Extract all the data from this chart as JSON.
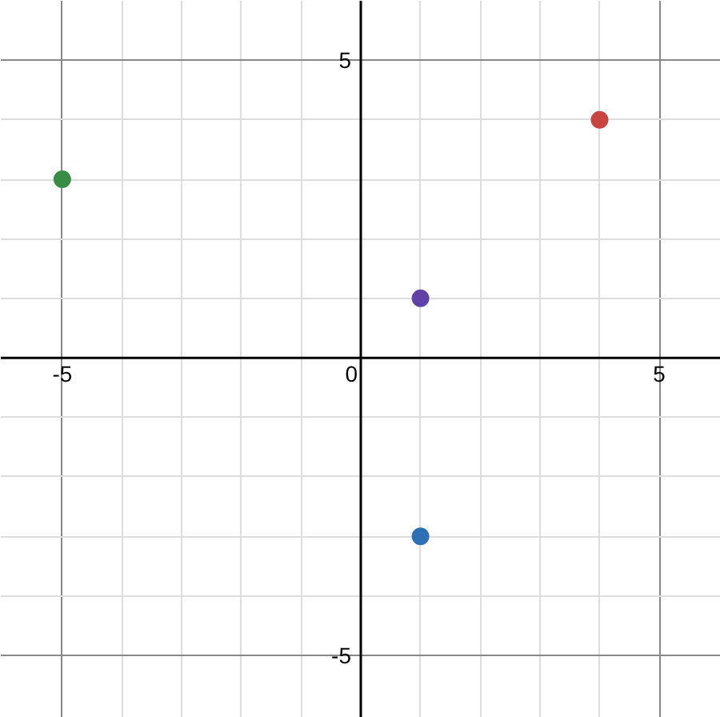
{
  "chart_data": {
    "type": "scatter",
    "x": [
      -5,
      4,
      1,
      1
    ],
    "values": [
      3,
      4,
      1,
      -3
    ],
    "colors": [
      "#388c46",
      "#c74440",
      "#6042a6",
      "#2d70b3"
    ],
    "marker": "circle",
    "xlim": [
      -6.03,
      6.03
    ],
    "ylim": [
      -6.05,
      6.0
    ],
    "xticks": [
      -5,
      {
        "value": -4,
        "label": null
      },
      {
        "value": -3,
        "label": null
      },
      {
        "value": -2,
        "label": null
      },
      {
        "value": -1,
        "label": null
      },
      0,
      {
        "value": 1,
        "label": null
      },
      {
        "value": 2,
        "label": null
      },
      {
        "value": 3,
        "label": null
      },
      {
        "value": 4,
        "label": null
      },
      5
    ],
    "yticks": [
      -5,
      {
        "value": -4,
        "label": null
      },
      {
        "value": -3,
        "label": null
      },
      {
        "value": -2,
        "label": null
      },
      {
        "value": -1,
        "label": null
      },
      {
        "value": 1,
        "label": null
      },
      {
        "value": 2,
        "label": null
      },
      {
        "value": 3,
        "label": null
      },
      {
        "value": 4,
        "label": null
      },
      5
    ],
    "grid": true
  }
}
